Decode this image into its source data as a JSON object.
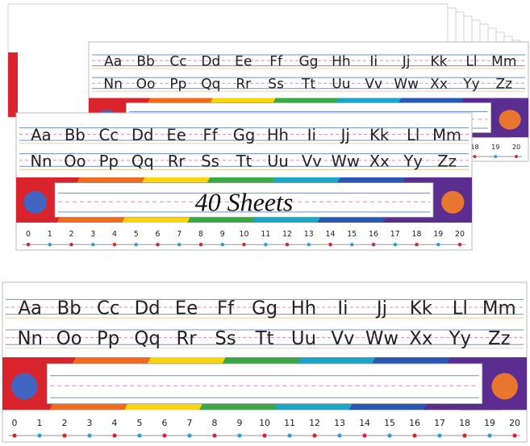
{
  "letters_row1": [
    "Aa",
    "Bb",
    "Cc",
    "Dd",
    "Ee",
    "Ff",
    "Gg",
    "Hh",
    "Ii",
    "Jj",
    "Kk",
    "Ll",
    "Mm"
  ],
  "letters_row2": [
    "Nn",
    "Oo",
    "Pp",
    "Qq",
    "Rr",
    "Ss",
    "Tt",
    "Uu",
    "Vv",
    "Ww",
    "Xx",
    "Yy",
    "Zz"
  ],
  "badge": "40 Sheets",
  "number_line": [
    0,
    1,
    2,
    3,
    4,
    5,
    6,
    7,
    8,
    9,
    10,
    11,
    12,
    13,
    14,
    15,
    16,
    17,
    18,
    19,
    20
  ]
}
